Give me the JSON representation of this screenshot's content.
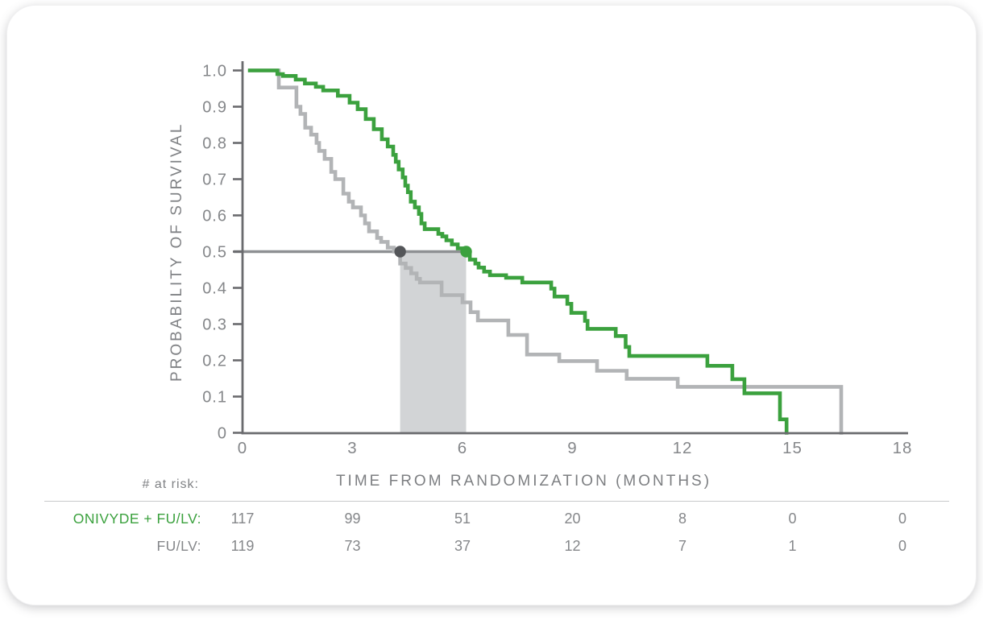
{
  "chart_data": {
    "type": "line",
    "subtype": "kaplan-meier-step",
    "xlabel": "TIME FROM RANDOMIZATION (MONTHS)",
    "ylabel": "PROBABILITY OF SURVIVAL",
    "xlim": [
      0,
      18
    ],
    "ylim": [
      0,
      1.0
    ],
    "x_ticks": [
      0,
      3,
      6,
      9,
      12,
      15,
      18
    ],
    "y_tick_labels": [
      "1.0",
      "0.9",
      "0.8",
      "0.7",
      "0.6",
      "0.5",
      "0.4",
      "0.3",
      "0.2",
      "0.1",
      "0"
    ],
    "grid": false,
    "legend_position": "none",
    "median_reference_probability": 0.5,
    "medians_months": {
      "ONIVYDE + FU/LV": 6.1,
      "FU/LV": 4.3
    },
    "shaded_region": {
      "x_from": 4.3,
      "x_to": 6.1,
      "y_from": 0,
      "y_to": 0.5,
      "color": "#d2d4d6"
    },
    "colors": {
      "onivyde_green": "#3ba13e",
      "fulv_gray": "#b2b4b6",
      "axis_gray": "#6a6b6e",
      "median_line_gray": "#8e9093",
      "dark_dot": "#545659",
      "text_gray": "#85878a"
    },
    "series": [
      {
        "name": "FU/LV",
        "color": "#b2b4b6",
        "points": [
          [
            0.2,
            1.0
          ],
          [
            0.99,
            0.953
          ],
          [
            1.47,
            0.9
          ],
          [
            1.58,
            0.88
          ],
          [
            1.71,
            0.842
          ],
          [
            1.87,
            0.823
          ],
          [
            2.02,
            0.8
          ],
          [
            2.09,
            0.778
          ],
          [
            2.24,
            0.756
          ],
          [
            2.42,
            0.72
          ],
          [
            2.53,
            0.7
          ],
          [
            2.75,
            0.66
          ],
          [
            2.9,
            0.638
          ],
          [
            3.01,
            0.622
          ],
          [
            3.23,
            0.6
          ],
          [
            3.34,
            0.578
          ],
          [
            3.45,
            0.556
          ],
          [
            3.67,
            0.538
          ],
          [
            3.78,
            0.527
          ],
          [
            3.96,
            0.511
          ],
          [
            4.13,
            0.5
          ],
          [
            4.3,
            0.467
          ],
          [
            4.45,
            0.455
          ],
          [
            4.6,
            0.44
          ],
          [
            4.75,
            0.425
          ],
          [
            4.84,
            0.415
          ],
          [
            5.43,
            0.38
          ],
          [
            6.0,
            0.36
          ],
          [
            6.22,
            0.333
          ],
          [
            6.42,
            0.31
          ],
          [
            7.25,
            0.27
          ],
          [
            7.76,
            0.216
          ],
          [
            8.64,
            0.198
          ],
          [
            9.67,
            0.171
          ],
          [
            10.48,
            0.149
          ],
          [
            11.87,
            0.127
          ],
          [
            16.33,
            0
          ]
        ]
      },
      {
        "name": "ONIVYDE + FU/LV",
        "color": "#3ba13e",
        "points": [
          [
            0.2,
            1.0
          ],
          [
            0.95,
            0.99
          ],
          [
            1.1,
            0.985
          ],
          [
            1.45,
            0.975
          ],
          [
            1.7,
            0.964
          ],
          [
            2.0,
            0.955
          ],
          [
            2.2,
            0.945
          ],
          [
            2.6,
            0.93
          ],
          [
            2.92,
            0.911
          ],
          [
            3.14,
            0.893
          ],
          [
            3.36,
            0.866
          ],
          [
            3.58,
            0.838
          ],
          [
            3.8,
            0.81
          ],
          [
            3.96,
            0.79
          ],
          [
            4.11,
            0.767
          ],
          [
            4.18,
            0.748
          ],
          [
            4.26,
            0.727
          ],
          [
            4.37,
            0.705
          ],
          [
            4.44,
            0.682
          ],
          [
            4.51,
            0.664
          ],
          [
            4.59,
            0.638
          ],
          [
            4.7,
            0.622
          ],
          [
            4.81,
            0.604
          ],
          [
            4.88,
            0.578
          ],
          [
            4.97,
            0.562
          ],
          [
            5.34,
            0.549
          ],
          [
            5.45,
            0.542
          ],
          [
            5.56,
            0.531
          ],
          [
            5.71,
            0.52
          ],
          [
            5.87,
            0.509
          ],
          [
            6.1,
            0.5
          ],
          [
            6.2,
            0.478
          ],
          [
            6.35,
            0.467
          ],
          [
            6.44,
            0.456
          ],
          [
            6.59,
            0.445
          ],
          [
            6.75,
            0.435
          ],
          [
            7.19,
            0.428
          ],
          [
            7.63,
            0.415
          ],
          [
            8.42,
            0.398
          ],
          [
            8.51,
            0.376
          ],
          [
            8.86,
            0.356
          ],
          [
            8.97,
            0.331
          ],
          [
            9.34,
            0.309
          ],
          [
            9.41,
            0.287
          ],
          [
            10.18,
            0.267
          ],
          [
            10.45,
            0.237
          ],
          [
            10.55,
            0.212
          ],
          [
            12.68,
            0.185
          ],
          [
            13.36,
            0.148
          ],
          [
            13.69,
            0.109
          ],
          [
            14.66,
            0.037
          ],
          [
            14.84,
            0
          ]
        ]
      }
    ]
  },
  "risk_table": {
    "heading": "# at risk:",
    "time_points": [
      0,
      3,
      6,
      9,
      12,
      15,
      18
    ],
    "rows": [
      {
        "label": "ONIVYDE + FU/LV:",
        "color": "#3ba13e",
        "values": [
          "117",
          "99",
          "51",
          "20",
          "8",
          "0",
          "0"
        ]
      },
      {
        "label": "FU/LV:",
        "color": "#85878a",
        "values": [
          "119",
          "73",
          "37",
          "12",
          "7",
          "1",
          "0"
        ]
      }
    ]
  }
}
